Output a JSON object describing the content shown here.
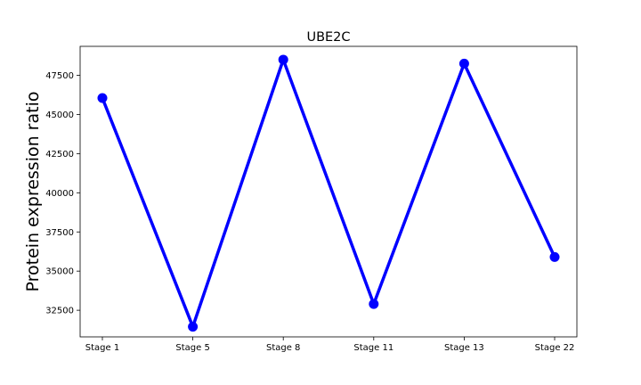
{
  "chart_data": {
    "type": "line",
    "title": "UBE2C",
    "xlabel": "",
    "ylabel": "Protein expression ratio",
    "categories": [
      "Stage 1",
      "Stage 5",
      "Stage 8",
      "Stage 11",
      "Stage 13",
      "Stage 22"
    ],
    "series": [
      {
        "values": [
          46050,
          31450,
          48500,
          32900,
          48250,
          35900
        ],
        "color": "#0000ff"
      }
    ],
    "ylim": [
      30800,
      49350
    ],
    "yticks": [
      32500,
      35000,
      37500,
      40000,
      42500,
      45000,
      47500
    ],
    "ytick_labels": [
      "32500",
      "35000",
      "37500",
      "40000",
      "42500",
      "45000",
      "47500"
    ],
    "grid": false,
    "legend": "none"
  }
}
